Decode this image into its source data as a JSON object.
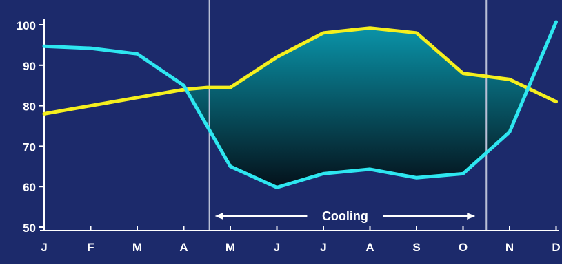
{
  "chart_data": {
    "type": "line",
    "categories": [
      "J",
      "F",
      "M",
      "A",
      "M",
      "J",
      "J",
      "A",
      "S",
      "O",
      "N",
      "D"
    ],
    "x": [
      1,
      2,
      3,
      4,
      5,
      6,
      7,
      8,
      9,
      10,
      11,
      12
    ],
    "ylim": [
      50,
      100
    ],
    "y_ticks": [
      100,
      90,
      80,
      70,
      60,
      50
    ],
    "grid": false,
    "legend": "none",
    "series": [
      {
        "color": "#f5ef1e",
        "points": [
          [
            1,
            78
          ],
          [
            2,
            80
          ],
          [
            3,
            82
          ],
          [
            4,
            84
          ],
          [
            4.5,
            84.5
          ],
          [
            5,
            84.5
          ],
          [
            6,
            92
          ],
          [
            7,
            98
          ],
          [
            8,
            99.2
          ],
          [
            9,
            98
          ],
          [
            10,
            88
          ],
          [
            11,
            86.5
          ],
          [
            12,
            81
          ]
        ]
      },
      {
        "color": "#2ee6f0",
        "points": [
          [
            1,
            94.7
          ],
          [
            2,
            94.2
          ],
          [
            3,
            92.8
          ],
          [
            4,
            85
          ],
          [
            5,
            65
          ],
          [
            6,
            59.8
          ],
          [
            7,
            63.2
          ],
          [
            8,
            64.3
          ],
          [
            9,
            62.2
          ],
          [
            10,
            63.2
          ],
          [
            11,
            73.5
          ],
          [
            12,
            100.7
          ]
        ]
      }
    ],
    "cooling_region": {
      "x_start": 4.55,
      "x_end": 10.5,
      "label": "Cooling"
    }
  },
  "colors": {
    "background": "#1c2a6b",
    "axis": "#ffffff",
    "divider": "#b9bfd6",
    "fill_top": "#0a93a8",
    "fill_bottom": "#04111a"
  }
}
